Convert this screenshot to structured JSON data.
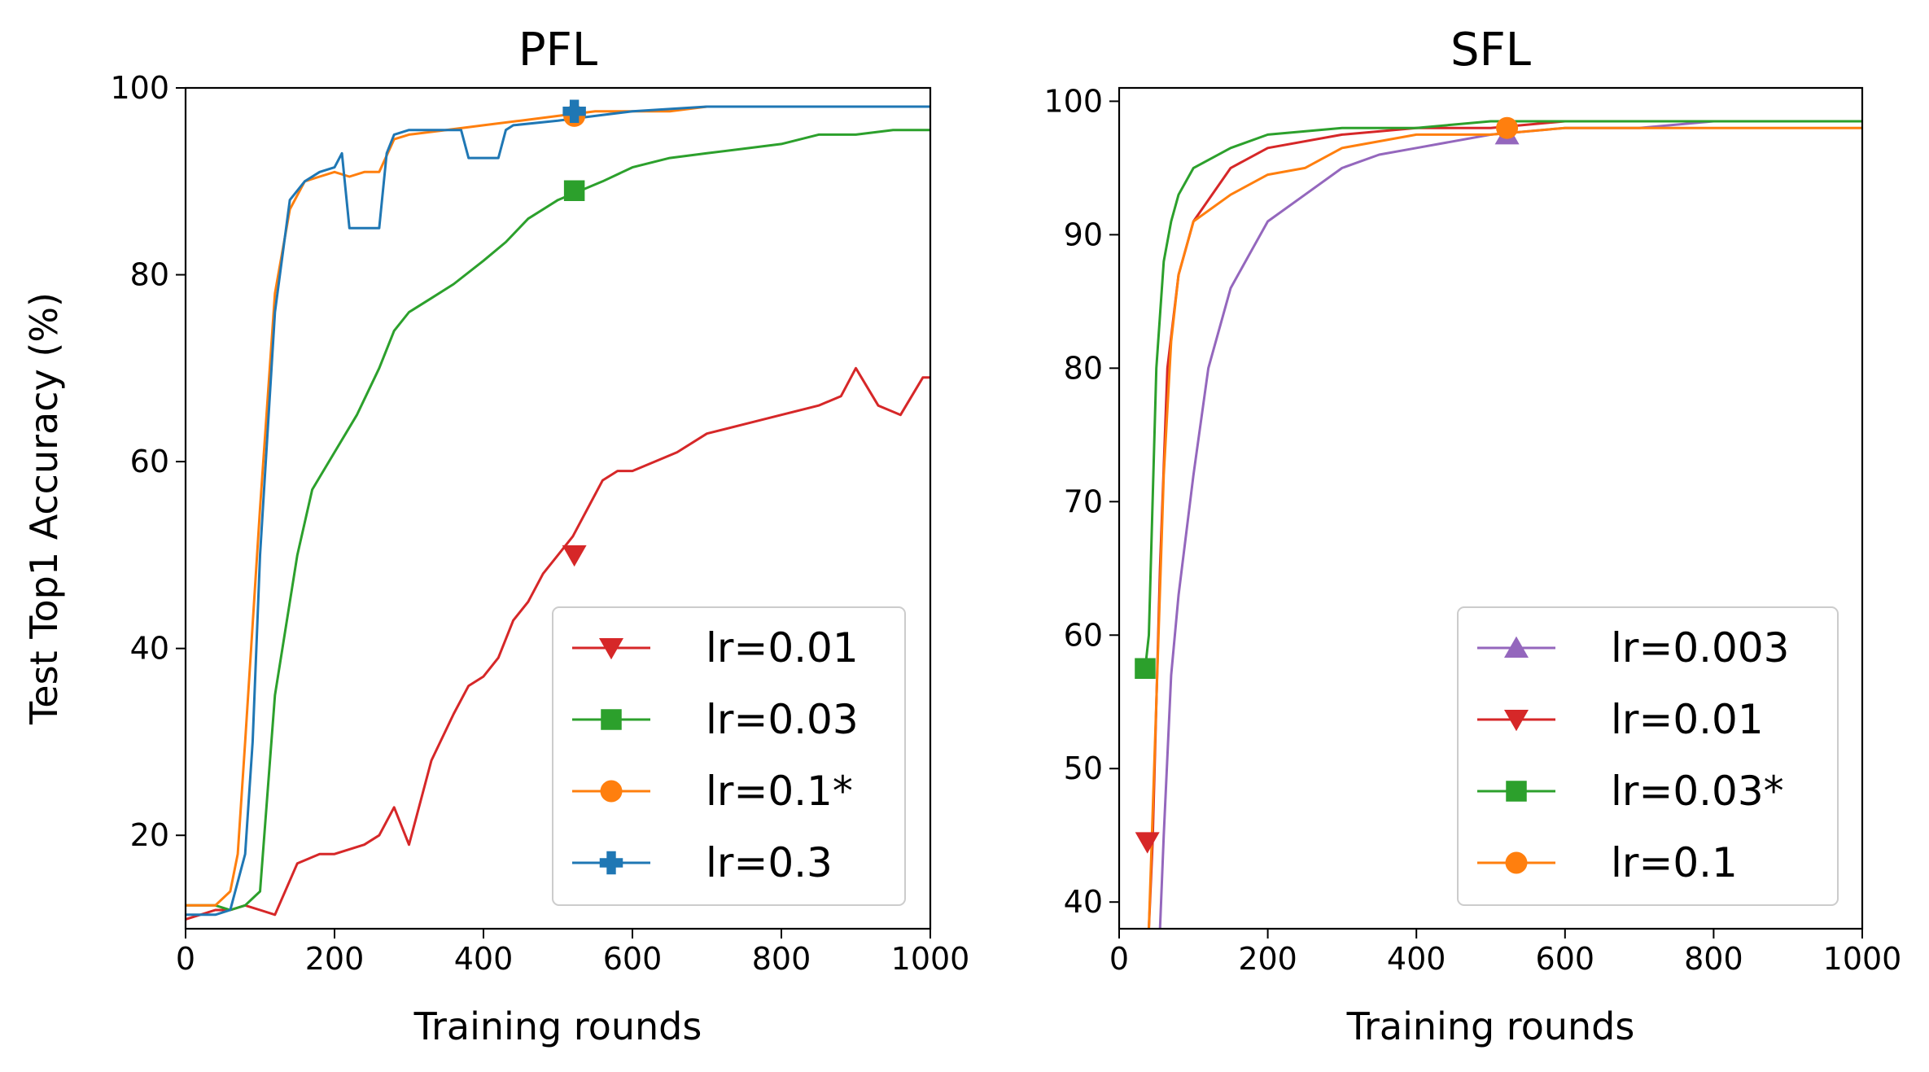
{
  "chart_data": [
    {
      "type": "line",
      "title": "PFL",
      "xlabel": "Training rounds",
      "ylabel": "Test Top1 Accuracy (%)",
      "xlim": [
        0,
        1000
      ],
      "ylim": [
        10,
        100
      ],
      "xticks": [
        0,
        200,
        400,
        600,
        800,
        1000
      ],
      "yticks": [
        20,
        40,
        60,
        80,
        100
      ],
      "legend_position": "bottom-right",
      "series": [
        {
          "name": "lr=0.01",
          "color": "#d62728",
          "marker": "triangle-down",
          "x": [
            0,
            40,
            60,
            80,
            100,
            120,
            150,
            180,
            200,
            220,
            240,
            260,
            280,
            300,
            330,
            360,
            380,
            400,
            420,
            440,
            460,
            480,
            500,
            520,
            540,
            560,
            580,
            600,
            630,
            660,
            700,
            750,
            800,
            850,
            880,
            900,
            930,
            960,
            990,
            1000
          ],
          "y": [
            11,
            12,
            12,
            12.5,
            12,
            11.5,
            17,
            18,
            18,
            18.5,
            19,
            20,
            23,
            19,
            28,
            33,
            36,
            37,
            39,
            43,
            45,
            48,
            50,
            52,
            55,
            58,
            59,
            59,
            60,
            61,
            63,
            64,
            65,
            66,
            67,
            70,
            66,
            65,
            69,
            69
          ],
          "marker_x": 522,
          "marker_y": 50
        },
        {
          "name": "lr=0.03",
          "color": "#2ca02c",
          "marker": "square",
          "x": [
            0,
            40,
            60,
            80,
            100,
            120,
            150,
            170,
            200,
            230,
            260,
            280,
            300,
            330,
            360,
            400,
            430,
            460,
            500,
            530,
            560,
            600,
            650,
            700,
            750,
            800,
            850,
            900,
            950,
            1000
          ],
          "y": [
            12.5,
            12.5,
            12,
            12.5,
            14,
            35,
            50,
            57,
            61,
            65,
            70,
            74,
            76,
            77.5,
            79,
            81.5,
            83.5,
            86,
            88,
            89,
            90,
            91.5,
            92.5,
            93,
            93.5,
            94,
            95,
            95,
            95.5,
            95.5
          ],
          "marker_x": 522,
          "marker_y": 89
        },
        {
          "name": "lr=0.1*",
          "color": "#ff7f0e",
          "marker": "circle",
          "x": [
            0,
            40,
            60,
            70,
            80,
            100,
            120,
            140,
            160,
            180,
            200,
            220,
            240,
            260,
            280,
            300,
            350,
            400,
            450,
            500,
            550,
            600,
            650,
            700,
            800,
            900,
            1000
          ],
          "y": [
            12.5,
            12.5,
            14,
            18,
            30,
            55,
            78,
            87,
            90,
            90.5,
            91,
            90.5,
            91,
            91,
            94.5,
            95,
            95.5,
            96,
            96.5,
            97,
            97.5,
            97.5,
            97.5,
            98,
            98,
            98,
            98
          ],
          "marker_x": 522,
          "marker_y": 97
        },
        {
          "name": "lr=0.3",
          "color": "#1f77b4",
          "marker": "plus",
          "x": [
            0,
            40,
            60,
            80,
            90,
            100,
            120,
            140,
            160,
            180,
            200,
            210,
            220,
            230,
            240,
            260,
            270,
            280,
            300,
            350,
            370,
            380,
            390,
            400,
            420,
            430,
            440,
            500,
            550,
            600,
            700,
            800,
            900,
            1000
          ],
          "y": [
            11.5,
            11.5,
            12,
            18,
            30,
            50,
            76,
            88,
            90,
            91,
            91.5,
            93,
            85,
            85,
            85,
            85,
            93,
            95,
            95.5,
            95.5,
            95.5,
            92.5,
            92.5,
            92.5,
            92.5,
            95.5,
            96,
            96.5,
            97,
            97.5,
            98,
            98,
            98,
            98
          ],
          "marker_x": 522,
          "marker_y": 97.5
        }
      ]
    },
    {
      "type": "line",
      "title": "SFL",
      "xlabel": "Training rounds",
      "ylabel": "",
      "xlim": [
        0,
        1000
      ],
      "ylim": [
        38,
        101
      ],
      "xticks": [
        0,
        200,
        400,
        600,
        800,
        1000
      ],
      "yticks": [
        40,
        50,
        60,
        70,
        80,
        90,
        100
      ],
      "legend_position": "bottom-right",
      "series": [
        {
          "name": "lr=0.003",
          "color": "#9467bd",
          "marker": "triangle-up",
          "x": [
            55,
            60,
            70,
            80,
            100,
            120,
            150,
            180,
            200,
            250,
            300,
            350,
            400,
            500,
            600,
            700,
            800,
            900,
            1000
          ],
          "y": [
            38,
            45,
            57,
            63,
            72,
            80,
            86,
            89,
            91,
            93,
            95,
            96,
            96.5,
            97.5,
            98,
            98,
            98.5,
            98.5,
            98.5
          ],
          "marker_x": 522,
          "marker_y": 97.5
        },
        {
          "name": "lr=0.01",
          "color": "#d62728",
          "marker": "triangle-down",
          "x": [
            40,
            45,
            55,
            65,
            80,
            100,
            150,
            200,
            300,
            400,
            500,
            600,
            700,
            800,
            900,
            1000
          ],
          "y": [
            38,
            44.5,
            65,
            80,
            87,
            91,
            95,
            96.5,
            97.5,
            98,
            98,
            98.5,
            98.5,
            98.5,
            98.5,
            98.5
          ],
          "marker_x": 38,
          "marker_y": 44.5
        },
        {
          "name": "lr=0.03*",
          "color": "#2ca02c",
          "marker": "square",
          "x": [
            35,
            40,
            50,
            60,
            70,
            80,
            100,
            150,
            200,
            300,
            400,
            500,
            600,
            700,
            800,
            900,
            1000
          ],
          "y": [
            57.5,
            60,
            80,
            88,
            91,
            93,
            95,
            96.5,
            97.5,
            98,
            98,
            98.5,
            98.5,
            98.5,
            98.5,
            98.5,
            98.5
          ],
          "marker_x": 35,
          "marker_y": 57.5
        },
        {
          "name": "lr=0.1",
          "color": "#ff7f0e",
          "marker": "circle",
          "x": [
            40,
            50,
            60,
            70,
            80,
            100,
            150,
            200,
            250,
            300,
            400,
            500,
            600,
            700,
            800,
            900,
            1000
          ],
          "y": [
            38,
            55,
            72,
            82,
            87,
            91,
            93,
            94.5,
            95,
            96.5,
            97.5,
            97.5,
            98,
            98,
            98,
            98,
            98
          ],
          "marker_x": 522,
          "marker_y": 98
        }
      ]
    }
  ]
}
